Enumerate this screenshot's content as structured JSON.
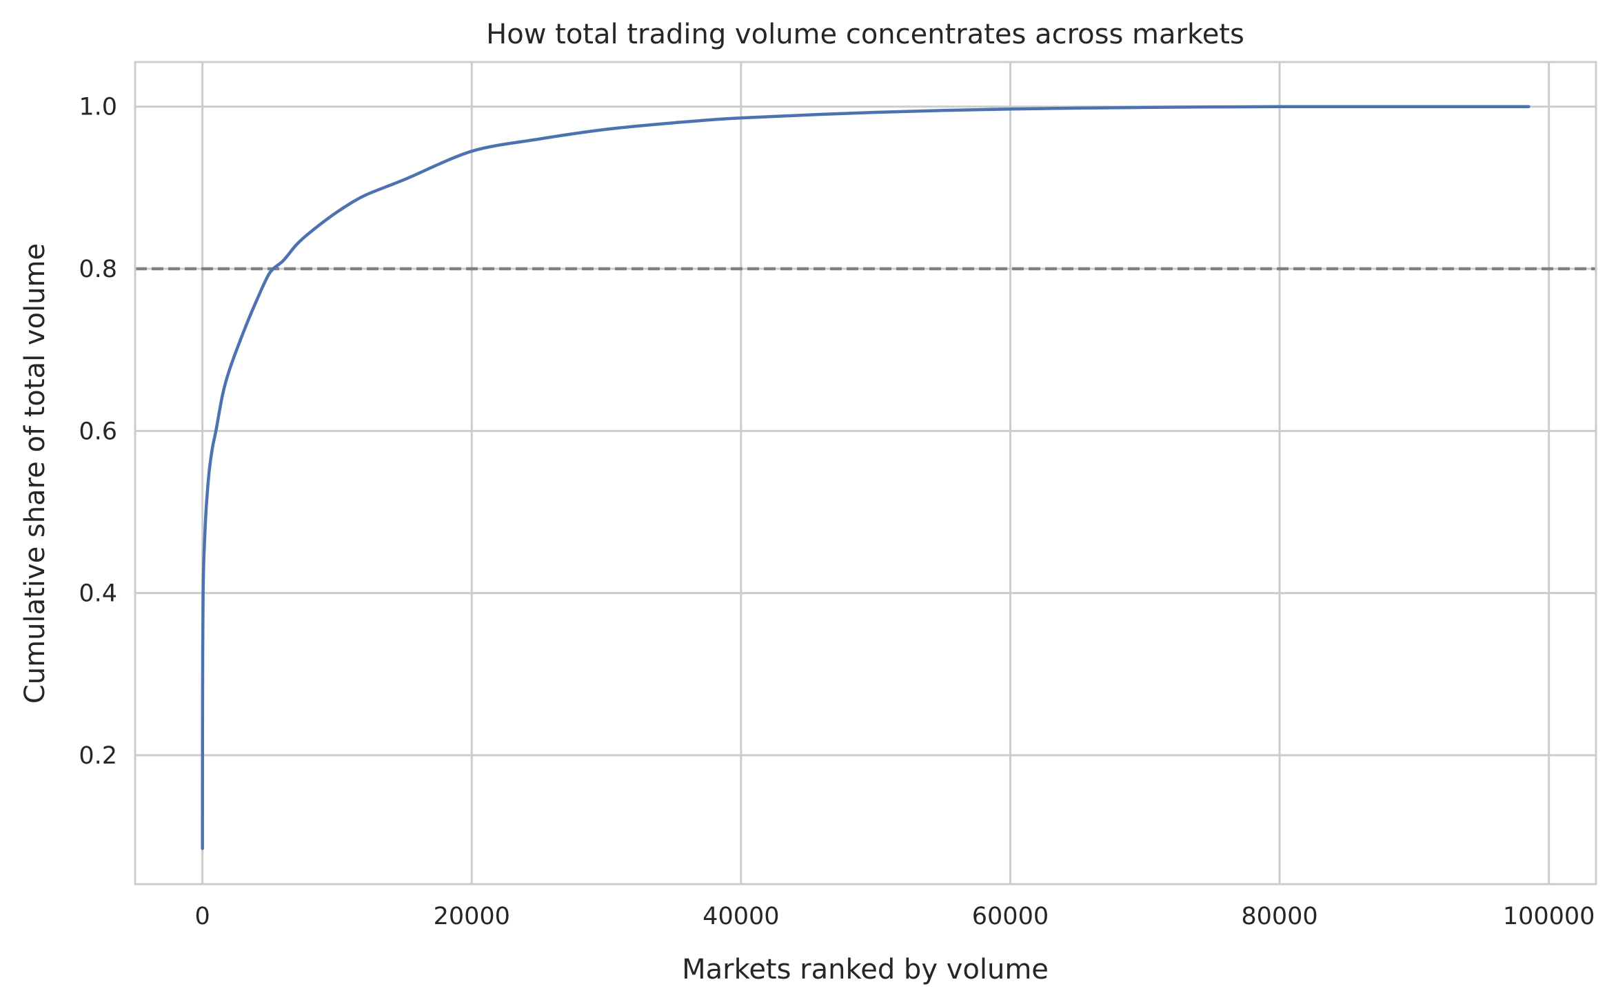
{
  "chart_data": {
    "type": "line",
    "title": "How total trading volume concentrates across markets",
    "xlabel": "Markets ranked by volume",
    "ylabel": "Cumulative share of total volume",
    "xlim": [
      -5000,
      103500
    ],
    "ylim": [
      0.041,
      1.055
    ],
    "x_ticks": [
      0,
      20000,
      40000,
      60000,
      80000,
      100000
    ],
    "x_tick_labels": [
      "0",
      "20000",
      "40000",
      "60000",
      "80000",
      "100000"
    ],
    "y_ticks": [
      0.2,
      0.4,
      0.6,
      0.8,
      1.0
    ],
    "y_tick_labels": [
      "0.2",
      "0.4",
      "0.6",
      "0.8",
      "1.0"
    ],
    "grid": true,
    "reference_line": {
      "y": 0.8,
      "style": "dashed",
      "color": "#808080"
    },
    "series": [
      {
        "color": "#4c72b0",
        "x": [
          0,
          5,
          20,
          50,
          100,
          200,
          300,
          500,
          750,
          1000,
          1500,
          2000,
          3000,
          4000,
          5000,
          6000,
          7000,
          8000,
          10000,
          12000,
          15000,
          20000,
          25000,
          30000,
          35000,
          40000,
          50000,
          60000,
          70000,
          80000,
          90000,
          98500
        ],
        "y": [
          0.085,
          0.22,
          0.33,
          0.4,
          0.44,
          0.48,
          0.51,
          0.55,
          0.58,
          0.6,
          0.645,
          0.675,
          0.72,
          0.76,
          0.795,
          0.81,
          0.83,
          0.845,
          0.87,
          0.89,
          0.91,
          0.945,
          0.96,
          0.972,
          0.98,
          0.986,
          0.993,
          0.997,
          0.999,
          1.0,
          1.0,
          1.0
        ]
      }
    ]
  }
}
